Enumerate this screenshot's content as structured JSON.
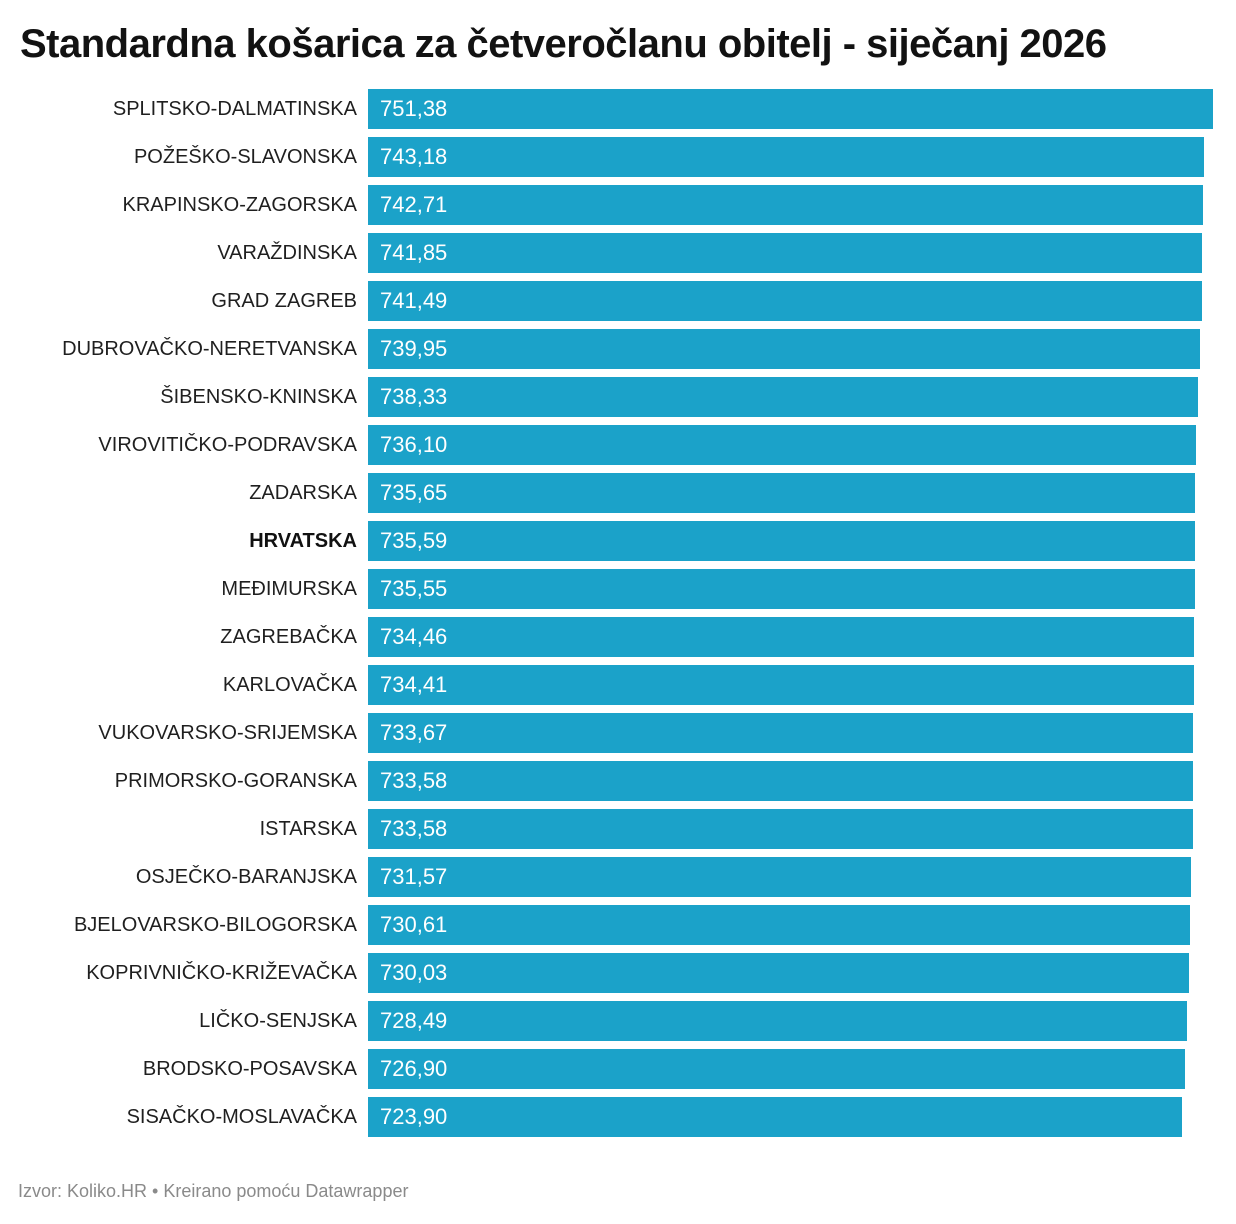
{
  "title": "Standardna košarica za četveročlanu obitelj - siječanj 2026",
  "footer": "Izvor: Koliko.HR • Kreirano pomoću Datawrapper",
  "colors": {
    "bar": "#1BA2C9",
    "title_text": "#121212",
    "category_text": "#1f1f1f",
    "value_text": "#ffffff",
    "footer_text": "#8a8a8a"
  },
  "chart_data": {
    "type": "bar",
    "orientation": "horizontal",
    "title": "Standardna košarica za četveročlanu obitelj - siječanj 2026",
    "xlabel": "",
    "ylabel": "",
    "xlim": [
      0,
      751.38
    ],
    "grid": false,
    "legend": false,
    "value_label_position": "inside-start",
    "highlight_category": "HRVATSKA",
    "source": "Izvor: Koliko.HR • Kreirano pomoću Datawrapper",
    "categories": [
      "SPLITSKO-DALMATINSKA",
      "POŽEŠKO-SLAVONSKA",
      "KRAPINSKO-ZAGORSKA",
      "VARAŽDINSKA",
      "GRAD ZAGREB",
      "DUBROVAČKO-NERETVANSKA",
      "ŠIBENSKO-KNINSKA",
      "VIROVITIČKO-PODRAVSKA",
      "ZADARSKA",
      "HRVATSKA",
      "MEĐIMURSKA",
      "ZAGREBAČKA",
      "KARLOVAČKA",
      "VUKOVARSKO-SRIJEMSKA",
      "PRIMORSKO-GORANSKA",
      "ISTARSKA",
      "OSJEČKO-BARANJSKA",
      "BJELOVARSKO-BILOGORSKA",
      "KOPRIVNIČKO-KRIŽEVAČKA",
      "LIČKO-SENJSKA",
      "BRODSKO-POSAVSKA",
      "SISAČKO-MOSLAVAČKA"
    ],
    "values": [
      751.38,
      743.18,
      742.71,
      741.85,
      741.49,
      739.95,
      738.33,
      736.1,
      735.65,
      735.59,
      735.55,
      734.46,
      734.41,
      733.67,
      733.58,
      733.58,
      731.57,
      730.61,
      730.03,
      728.49,
      726.9,
      723.9
    ],
    "value_labels": [
      "751,38",
      "743,18",
      "742,71",
      "741,85",
      "741,49",
      "739,95",
      "738,33",
      "736,10",
      "735,65",
      "735,59",
      "735,55",
      "734,46",
      "734,41",
      "733,67",
      "733,58",
      "733,58",
      "731,57",
      "730,61",
      "730,03",
      "728,49",
      "726,90",
      "723,90"
    ]
  }
}
